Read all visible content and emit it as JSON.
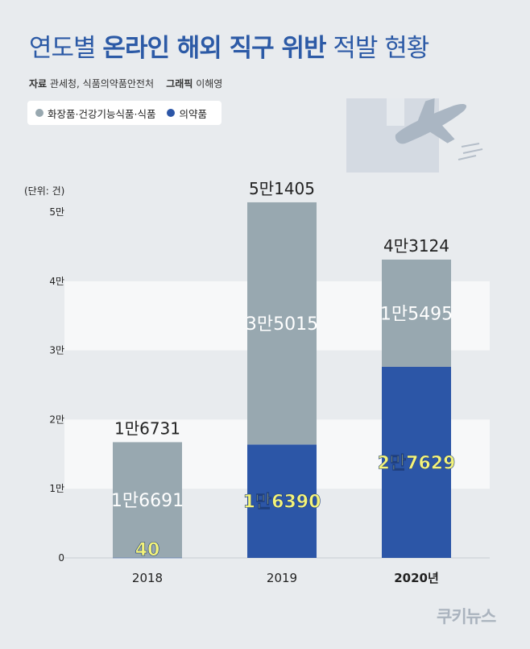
{
  "title": {
    "part1": "연도별 ",
    "part2": "온라인 해외 직구 위반",
    "part3": " 적발 현황"
  },
  "source": {
    "label": "자료",
    "value": "관세청, 식품의약품안전처",
    "graphic_label": "그래픽",
    "graphic_value": "이해영"
  },
  "legend": [
    {
      "name": "화장품·건강기능식품·식품",
      "color": "#98a8b0"
    },
    {
      "name": "의약품",
      "color": "#2c56a7"
    }
  ],
  "logo_text": "쿠키뉴스",
  "chart_data": {
    "type": "bar",
    "stacked": true,
    "unit_label": "(단위: 건)",
    "categories": [
      "2018",
      "2019",
      "2020년"
    ],
    "ytick_labels": [
      "0",
      "1만",
      "2만",
      "3만",
      "4만",
      "5만"
    ],
    "ylim": [
      0,
      50000
    ],
    "series": [
      {
        "name": "의약품",
        "values": [
          40,
          16390,
          27629
        ],
        "labels": [
          "40",
          "1만6390",
          "2만7629"
        ],
        "color": "#2c56a7"
      },
      {
        "name": "화장품·건강기능식품·식품",
        "values": [
          16691,
          35015,
          15495
        ],
        "labels": [
          "1만6691",
          "3만5015",
          "1만5495"
        ],
        "color": "#98a8b0"
      }
    ],
    "totals": [
      16731,
      51405,
      43124
    ],
    "total_labels": [
      "1만6731",
      "5만1405",
      "4만3124"
    ]
  }
}
